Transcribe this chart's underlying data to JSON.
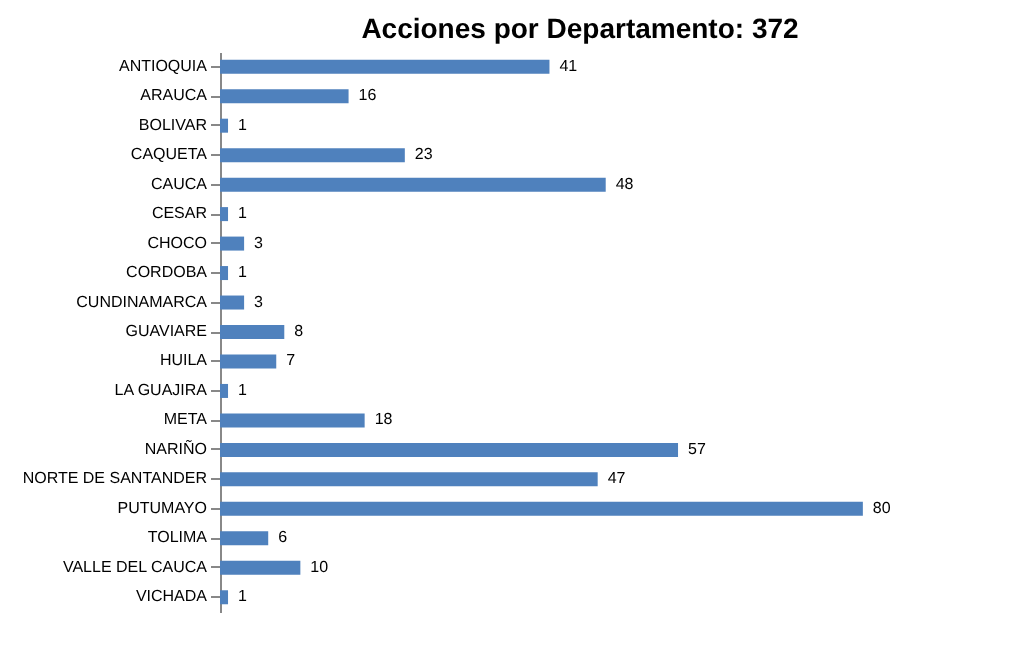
{
  "chart_data": {
    "type": "bar",
    "orientation": "horizontal",
    "title": "Acciones por Departamento: 372",
    "categories": [
      "ANTIOQUIA",
      "ARAUCA",
      "BOLIVAR",
      "CAQUETA",
      "CAUCA",
      "CESAR",
      "CHOCO",
      "CORDOBA",
      "CUNDINAMARCA",
      "GUAVIARE",
      "HUILA",
      "LA GUAJIRA",
      "META",
      "NARIÑO",
      "NORTE DE SANTANDER",
      "PUTUMAYO",
      "TOLIMA",
      "VALLE DEL CAUCA",
      "VICHADA"
    ],
    "values": [
      41,
      16,
      1,
      23,
      48,
      1,
      3,
      1,
      3,
      8,
      7,
      1,
      18,
      57,
      47,
      80,
      6,
      10,
      1
    ],
    "color": "#4f81bd",
    "data_labels": true,
    "grid": false,
    "tick_labels": "y"
  }
}
